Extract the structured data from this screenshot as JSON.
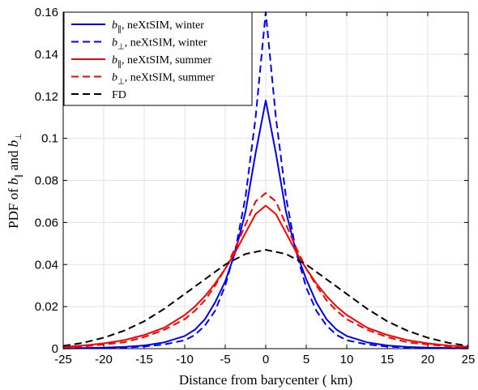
{
  "chart_data": {
    "type": "line",
    "xlabel": "Distance from barycenter ( km)",
    "ylabel": {
      "prefix": "PDF of ",
      "b": "b",
      "sub1": "∥",
      "and": " and ",
      "sub2": "⊥"
    },
    "xlim": [
      -25,
      25
    ],
    "ylim": [
      0,
      0.16
    ],
    "xticks": [
      "-25",
      "-20",
      "-15",
      "-10",
      "-5",
      "0",
      "5",
      "10",
      "15",
      "20",
      "25"
    ],
    "yticks": [
      "0",
      "0.02",
      "0.04",
      "0.06",
      "0.08",
      "0.1",
      "0.12",
      "0.14",
      "0.16"
    ],
    "grid": true,
    "legend_position": "top-left",
    "series": [
      {
        "name": "b∥, neXtSIM, winter",
        "legend": {
          "b": "b",
          "sub": "∥",
          "rest": ", neXtSIM, winter"
        },
        "color": "#0000ff",
        "style": "solid",
        "x": [
          -25,
          -22.5,
          -20,
          -17.5,
          -15,
          -12.5,
          -10,
          -8.75,
          -7.5,
          -6.25,
          -5,
          -3.75,
          -2.5,
          -1.25,
          0,
          1.25,
          2.5,
          3.75,
          5,
          6.25,
          7.5,
          8.75,
          10,
          12.5,
          15,
          17.5,
          20,
          22.5,
          25
        ],
        "y": [
          0.0002,
          0.0003,
          0.0005,
          0.0008,
          0.0015,
          0.003,
          0.006,
          0.009,
          0.014,
          0.022,
          0.032,
          0.046,
          0.065,
          0.093,
          0.118,
          0.093,
          0.065,
          0.046,
          0.033,
          0.022,
          0.014,
          0.009,
          0.006,
          0.003,
          0.0015,
          0.0008,
          0.0005,
          0.0003,
          0.0002
        ]
      },
      {
        "name": "b⊥, neXtSIM, winter",
        "legend": {
          "b": "b",
          "sub": "⊥",
          "rest": ", neXtSIM, winter"
        },
        "color": "#0000ff",
        "style": "dashed",
        "x": [
          -25,
          -22.5,
          -20,
          -17.5,
          -15,
          -12.5,
          -10,
          -8.75,
          -7.5,
          -6.25,
          -5,
          -3.75,
          -2.5,
          -1.25,
          0,
          1.25,
          2.5,
          3.75,
          5,
          6.25,
          7.5,
          8.75,
          10,
          12.5,
          15,
          17.5,
          20,
          22.5,
          25
        ],
        "y": [
          0.0001,
          0.0002,
          0.0003,
          0.0005,
          0.001,
          0.002,
          0.004,
          0.0065,
          0.011,
          0.018,
          0.03,
          0.047,
          0.072,
          0.11,
          0.16,
          0.11,
          0.072,
          0.046,
          0.029,
          0.018,
          0.011,
          0.0065,
          0.004,
          0.002,
          0.001,
          0.0005,
          0.0003,
          0.0002,
          0.0001
        ]
      },
      {
        "name": "b∥, neXtSIM, summer",
        "legend": {
          "b": "b",
          "sub": "∥",
          "rest": ", neXtSIM, summer"
        },
        "color": "#ff0000",
        "style": "solid",
        "x": [
          -25,
          -22.5,
          -20,
          -17.5,
          -15,
          -12.5,
          -10,
          -8.75,
          -7.5,
          -6.25,
          -5,
          -3.75,
          -2.5,
          -1.25,
          0,
          1.25,
          2.5,
          3.75,
          5,
          6.25,
          7.5,
          8.75,
          10,
          12.5,
          15,
          17.5,
          20,
          22.5,
          25
        ],
        "y": [
          0.0008,
          0.0015,
          0.0025,
          0.004,
          0.0065,
          0.01,
          0.016,
          0.02,
          0.025,
          0.031,
          0.038,
          0.046,
          0.055,
          0.064,
          0.068,
          0.064,
          0.055,
          0.046,
          0.038,
          0.031,
          0.025,
          0.02,
          0.016,
          0.01,
          0.0065,
          0.004,
          0.0025,
          0.0015,
          0.0008
        ]
      },
      {
        "name": "b⊥, neXtSIM, summer",
        "legend": {
          "b": "b",
          "sub": "⊥",
          "rest": ", neXtSIM, summer"
        },
        "color": "#ff0000",
        "style": "dashed",
        "x": [
          -25,
          -22.5,
          -20,
          -17.5,
          -15,
          -12.5,
          -10,
          -8.75,
          -7.5,
          -6.25,
          -5,
          -3.75,
          -2.5,
          -1.25,
          0,
          1.25,
          2.5,
          3.75,
          5,
          6.25,
          7.5,
          8.75,
          10,
          12.5,
          15,
          17.5,
          20,
          22.5,
          25
        ],
        "y": [
          0.0006,
          0.001,
          0.002,
          0.003,
          0.0055,
          0.009,
          0.014,
          0.018,
          0.023,
          0.03,
          0.038,
          0.048,
          0.059,
          0.07,
          0.074,
          0.07,
          0.059,
          0.048,
          0.038,
          0.03,
          0.023,
          0.018,
          0.014,
          0.009,
          0.0055,
          0.003,
          0.002,
          0.001,
          0.0006
        ]
      },
      {
        "name": "FD",
        "legend": {
          "b": "",
          "sub": "",
          "rest": "FD"
        },
        "color": "#000000",
        "style": "dashed",
        "x": [
          -25,
          -22.5,
          -20,
          -17.5,
          -15,
          -12.5,
          -10,
          -7.5,
          -5,
          -2.5,
          0,
          2.5,
          5,
          7.5,
          10,
          12.5,
          15,
          17.5,
          20,
          22.5,
          25
        ],
        "y": [
          0.0013,
          0.0028,
          0.0052,
          0.0085,
          0.013,
          0.019,
          0.026,
          0.033,
          0.04,
          0.045,
          0.047,
          0.045,
          0.04,
          0.033,
          0.026,
          0.019,
          0.013,
          0.0085,
          0.0052,
          0.0028,
          0.0013
        ]
      }
    ]
  }
}
